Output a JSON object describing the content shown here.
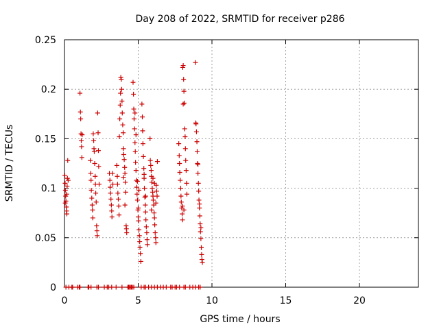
{
  "chart_data": {
    "type": "scatter",
    "title": "Day 208 of 2022, SRMTID for receiver p286",
    "xlabel": "GPS time / hours",
    "ylabel": "SRMTID / TECUs",
    "xlim": [
      0,
      24
    ],
    "ylim": [
      0,
      0.25
    ],
    "xticks": [
      0,
      5,
      10,
      15,
      20
    ],
    "xtick_labels": [
      "0",
      "5",
      "10",
      "15",
      "20"
    ],
    "yticks": [
      0,
      0.05,
      0.1,
      0.15,
      0.2,
      0.25
    ],
    "ytick_labels": [
      "0",
      "0.05",
      "0.1",
      "0.15",
      "0.2",
      "0.25"
    ],
    "grid": true,
    "marker": "+",
    "color": "#cc0000",
    "series": [
      {
        "name": "SRMTID",
        "points": [
          [
            0.02,
            0.113
          ],
          [
            0.04,
            0.105
          ],
          [
            0.06,
            0.098
          ],
          [
            0.08,
            0.092
          ],
          [
            0.1,
            0.087
          ],
          [
            0.12,
            0.081
          ],
          [
            0.14,
            0.077
          ],
          [
            0.16,
            0.074
          ],
          [
            0.18,
            0.102
          ],
          [
            0.2,
            0.11
          ],
          [
            0.22,
            0.128
          ],
          [
            0.05,
            0.085
          ],
          [
            0.15,
            0.094
          ],
          [
            0.25,
            0.108
          ],
          [
            1.05,
            0.196
          ],
          [
            1.08,
            0.177
          ],
          [
            1.1,
            0.17
          ],
          [
            1.12,
            0.155
          ],
          [
            1.14,
            0.148
          ],
          [
            1.16,
            0.142
          ],
          [
            1.18,
            0.131
          ],
          [
            1.2,
            0.154
          ],
          [
            1.75,
            0.128
          ],
          [
            1.78,
            0.115
          ],
          [
            1.8,
            0.108
          ],
          [
            1.82,
            0.098
          ],
          [
            1.85,
            0.09
          ],
          [
            1.88,
            0.083
          ],
          [
            1.9,
            0.078
          ],
          [
            1.92,
            0.07
          ],
          [
            1.95,
            0.155
          ],
          [
            1.98,
            0.148
          ],
          [
            2.0,
            0.14
          ],
          [
            2.02,
            0.137
          ],
          [
            2.05,
            0.125
          ],
          [
            2.08,
            0.112
          ],
          [
            2.1,
            0.104
          ],
          [
            2.12,
            0.095
          ],
          [
            2.15,
            0.086
          ],
          [
            2.18,
            0.062
          ],
          [
            2.2,
            0.057
          ],
          [
            2.22,
            0.052
          ],
          [
            2.25,
            0.176
          ],
          [
            2.28,
            0.156
          ],
          [
            2.3,
            0.138
          ],
          [
            2.32,
            0.122
          ],
          [
            2.35,
            0.104
          ],
          [
            3.05,
            0.115
          ],
          [
            3.08,
            0.108
          ],
          [
            3.1,
            0.101
          ],
          [
            3.12,
            0.095
          ],
          [
            3.15,
            0.089
          ],
          [
            3.18,
            0.083
          ],
          [
            3.2,
            0.077
          ],
          [
            3.22,
            0.071
          ],
          [
            3.25,
            0.115
          ],
          [
            3.28,
            0.104
          ],
          [
            3.55,
            0.123
          ],
          [
            3.58,
            0.112
          ],
          [
            3.6,
            0.104
          ],
          [
            3.62,
            0.095
          ],
          [
            3.65,
            0.089
          ],
          [
            3.68,
            0.082
          ],
          [
            3.7,
            0.073
          ],
          [
            3.72,
            0.152
          ],
          [
            3.75,
            0.17
          ],
          [
            3.78,
            0.184
          ],
          [
            3.8,
            0.196
          ],
          [
            3.82,
            0.212
          ],
          [
            3.85,
            0.21
          ],
          [
            3.88,
            0.2
          ],
          [
            3.9,
            0.188
          ],
          [
            3.92,
            0.176
          ],
          [
            3.95,
            0.164
          ],
          [
            3.98,
            0.156
          ],
          [
            4.0,
            0.14
          ],
          [
            4.02,
            0.134
          ],
          [
            4.05,
            0.129
          ],
          [
            4.08,
            0.121
          ],
          [
            4.1,
            0.115
          ],
          [
            4.12,
            0.106
          ],
          [
            4.15,
            0.096
          ],
          [
            4.18,
            0.062
          ],
          [
            4.2,
            0.059
          ],
          [
            4.22,
            0.055
          ],
          [
            4.0,
            0.111
          ],
          [
            4.1,
            0.083
          ],
          [
            4.65,
            0.207
          ],
          [
            4.68,
            0.195
          ],
          [
            4.7,
            0.18
          ],
          [
            4.72,
            0.17
          ],
          [
            4.75,
            0.16
          ],
          [
            4.78,
            0.146
          ],
          [
            4.8,
            0.137
          ],
          [
            4.82,
            0.126
          ],
          [
            4.85,
            0.118
          ],
          [
            4.88,
            0.108
          ],
          [
            4.9,
            0.101
          ],
          [
            4.92,
            0.094
          ],
          [
            4.95,
            0.088
          ],
          [
            4.98,
            0.078
          ],
          [
            5.0,
            0.071
          ],
          [
            5.02,
            0.067
          ],
          [
            5.05,
            0.058
          ],
          [
            5.08,
            0.052
          ],
          [
            5.1,
            0.046
          ],
          [
            5.12,
            0.04
          ],
          [
            5.15,
            0.034
          ],
          [
            5.18,
            0.026
          ],
          [
            4.78,
            0.176
          ],
          [
            4.85,
            0.154
          ],
          [
            4.95,
            0.107
          ],
          [
            5.0,
            0.08
          ],
          [
            5.05,
            0.098
          ],
          [
            5.25,
            0.185
          ],
          [
            5.28,
            0.172
          ],
          [
            5.3,
            0.158
          ],
          [
            5.32,
            0.145
          ],
          [
            5.35,
            0.132
          ],
          [
            5.38,
            0.12
          ],
          [
            5.4,
            0.11
          ],
          [
            5.42,
            0.1
          ],
          [
            5.45,
            0.091
          ],
          [
            5.48,
            0.083
          ],
          [
            5.5,
            0.076
          ],
          [
            5.52,
            0.068
          ],
          [
            5.55,
            0.061
          ],
          [
            5.58,
            0.055
          ],
          [
            5.6,
            0.048
          ],
          [
            5.62,
            0.043
          ],
          [
            5.4,
            0.114
          ],
          [
            5.5,
            0.092
          ],
          [
            5.8,
            0.15
          ],
          [
            5.82,
            0.128
          ],
          [
            5.85,
            0.123
          ],
          [
            5.88,
            0.118
          ],
          [
            5.9,
            0.112
          ],
          [
            5.92,
            0.106
          ],
          [
            5.95,
            0.1
          ],
          [
            5.98,
            0.096
          ],
          [
            6.0,
            0.092
          ],
          [
            6.02,
            0.088
          ],
          [
            6.05,
            0.083
          ],
          [
            6.08,
            0.075
          ],
          [
            6.1,
            0.07
          ],
          [
            6.12,
            0.063
          ],
          [
            6.15,
            0.055
          ],
          [
            6.18,
            0.05
          ],
          [
            6.2,
            0.045
          ],
          [
            6.22,
            0.103
          ],
          [
            6.25,
            0.097
          ],
          [
            6.28,
            0.092
          ],
          [
            6.3,
            0.127
          ],
          [
            6.0,
            0.11
          ],
          [
            6.1,
            0.105
          ],
          [
            6.2,
            0.085
          ],
          [
            5.9,
            0.078
          ],
          [
            7.75,
            0.145
          ],
          [
            7.78,
            0.133
          ],
          [
            7.8,
            0.125
          ],
          [
            7.82,
            0.116
          ],
          [
            7.85,
            0.108
          ],
          [
            7.88,
            0.1
          ],
          [
            7.9,
            0.092
          ],
          [
            7.92,
            0.086
          ],
          [
            7.95,
            0.08
          ],
          [
            7.98,
            0.074
          ],
          [
            8.0,
            0.068
          ],
          [
            8.02,
            0.222
          ],
          [
            8.05,
            0.224
          ],
          [
            8.08,
            0.21
          ],
          [
            8.1,
            0.198
          ],
          [
            8.12,
            0.186
          ],
          [
            8.15,
            0.16
          ],
          [
            8.18,
            0.152
          ],
          [
            8.2,
            0.14
          ],
          [
            8.22,
            0.128
          ],
          [
            8.25,
            0.118
          ],
          [
            8.28,
            0.105
          ],
          [
            8.3,
            0.094
          ],
          [
            8.0,
            0.082
          ],
          [
            8.1,
            0.078
          ],
          [
            8.05,
            0.185
          ],
          [
            8.88,
            0.227
          ],
          [
            8.9,
            0.166
          ],
          [
            8.92,
            0.165
          ],
          [
            8.95,
            0.157
          ],
          [
            8.98,
            0.147
          ],
          [
            9.0,
            0.137
          ],
          [
            9.02,
            0.125
          ],
          [
            9.05,
            0.115
          ],
          [
            9.08,
            0.105
          ],
          [
            9.1,
            0.097
          ],
          [
            9.12,
            0.088
          ],
          [
            9.15,
            0.08
          ],
          [
            9.18,
            0.072
          ],
          [
            9.2,
            0.064
          ],
          [
            9.22,
            0.056
          ],
          [
            9.25,
            0.049
          ],
          [
            9.28,
            0.04
          ],
          [
            9.3,
            0.033
          ],
          [
            9.32,
            0.028
          ],
          [
            9.35,
            0.025
          ],
          [
            9.05,
            0.124
          ],
          [
            9.15,
            0.084
          ],
          [
            9.25,
            0.06
          ]
        ],
        "zero_x": [
          0.1,
          0.3,
          0.5,
          0.55,
          0.9,
          1.0,
          1.05,
          1.6,
          1.65,
          1.8,
          2.2,
          2.3,
          2.7,
          2.9,
          3.0,
          3.2,
          3.5,
          3.9,
          4.3,
          4.35,
          4.4,
          4.5,
          4.55,
          4.6,
          4.7,
          5.2,
          5.4,
          5.5,
          5.7,
          5.9,
          6.1,
          6.3,
          6.5,
          6.7,
          6.9,
          7.2,
          7.3,
          7.5,
          7.6,
          7.8,
          8.1,
          8.2,
          8.5,
          8.7,
          8.9,
          9.1,
          9.2
        ]
      }
    ]
  }
}
